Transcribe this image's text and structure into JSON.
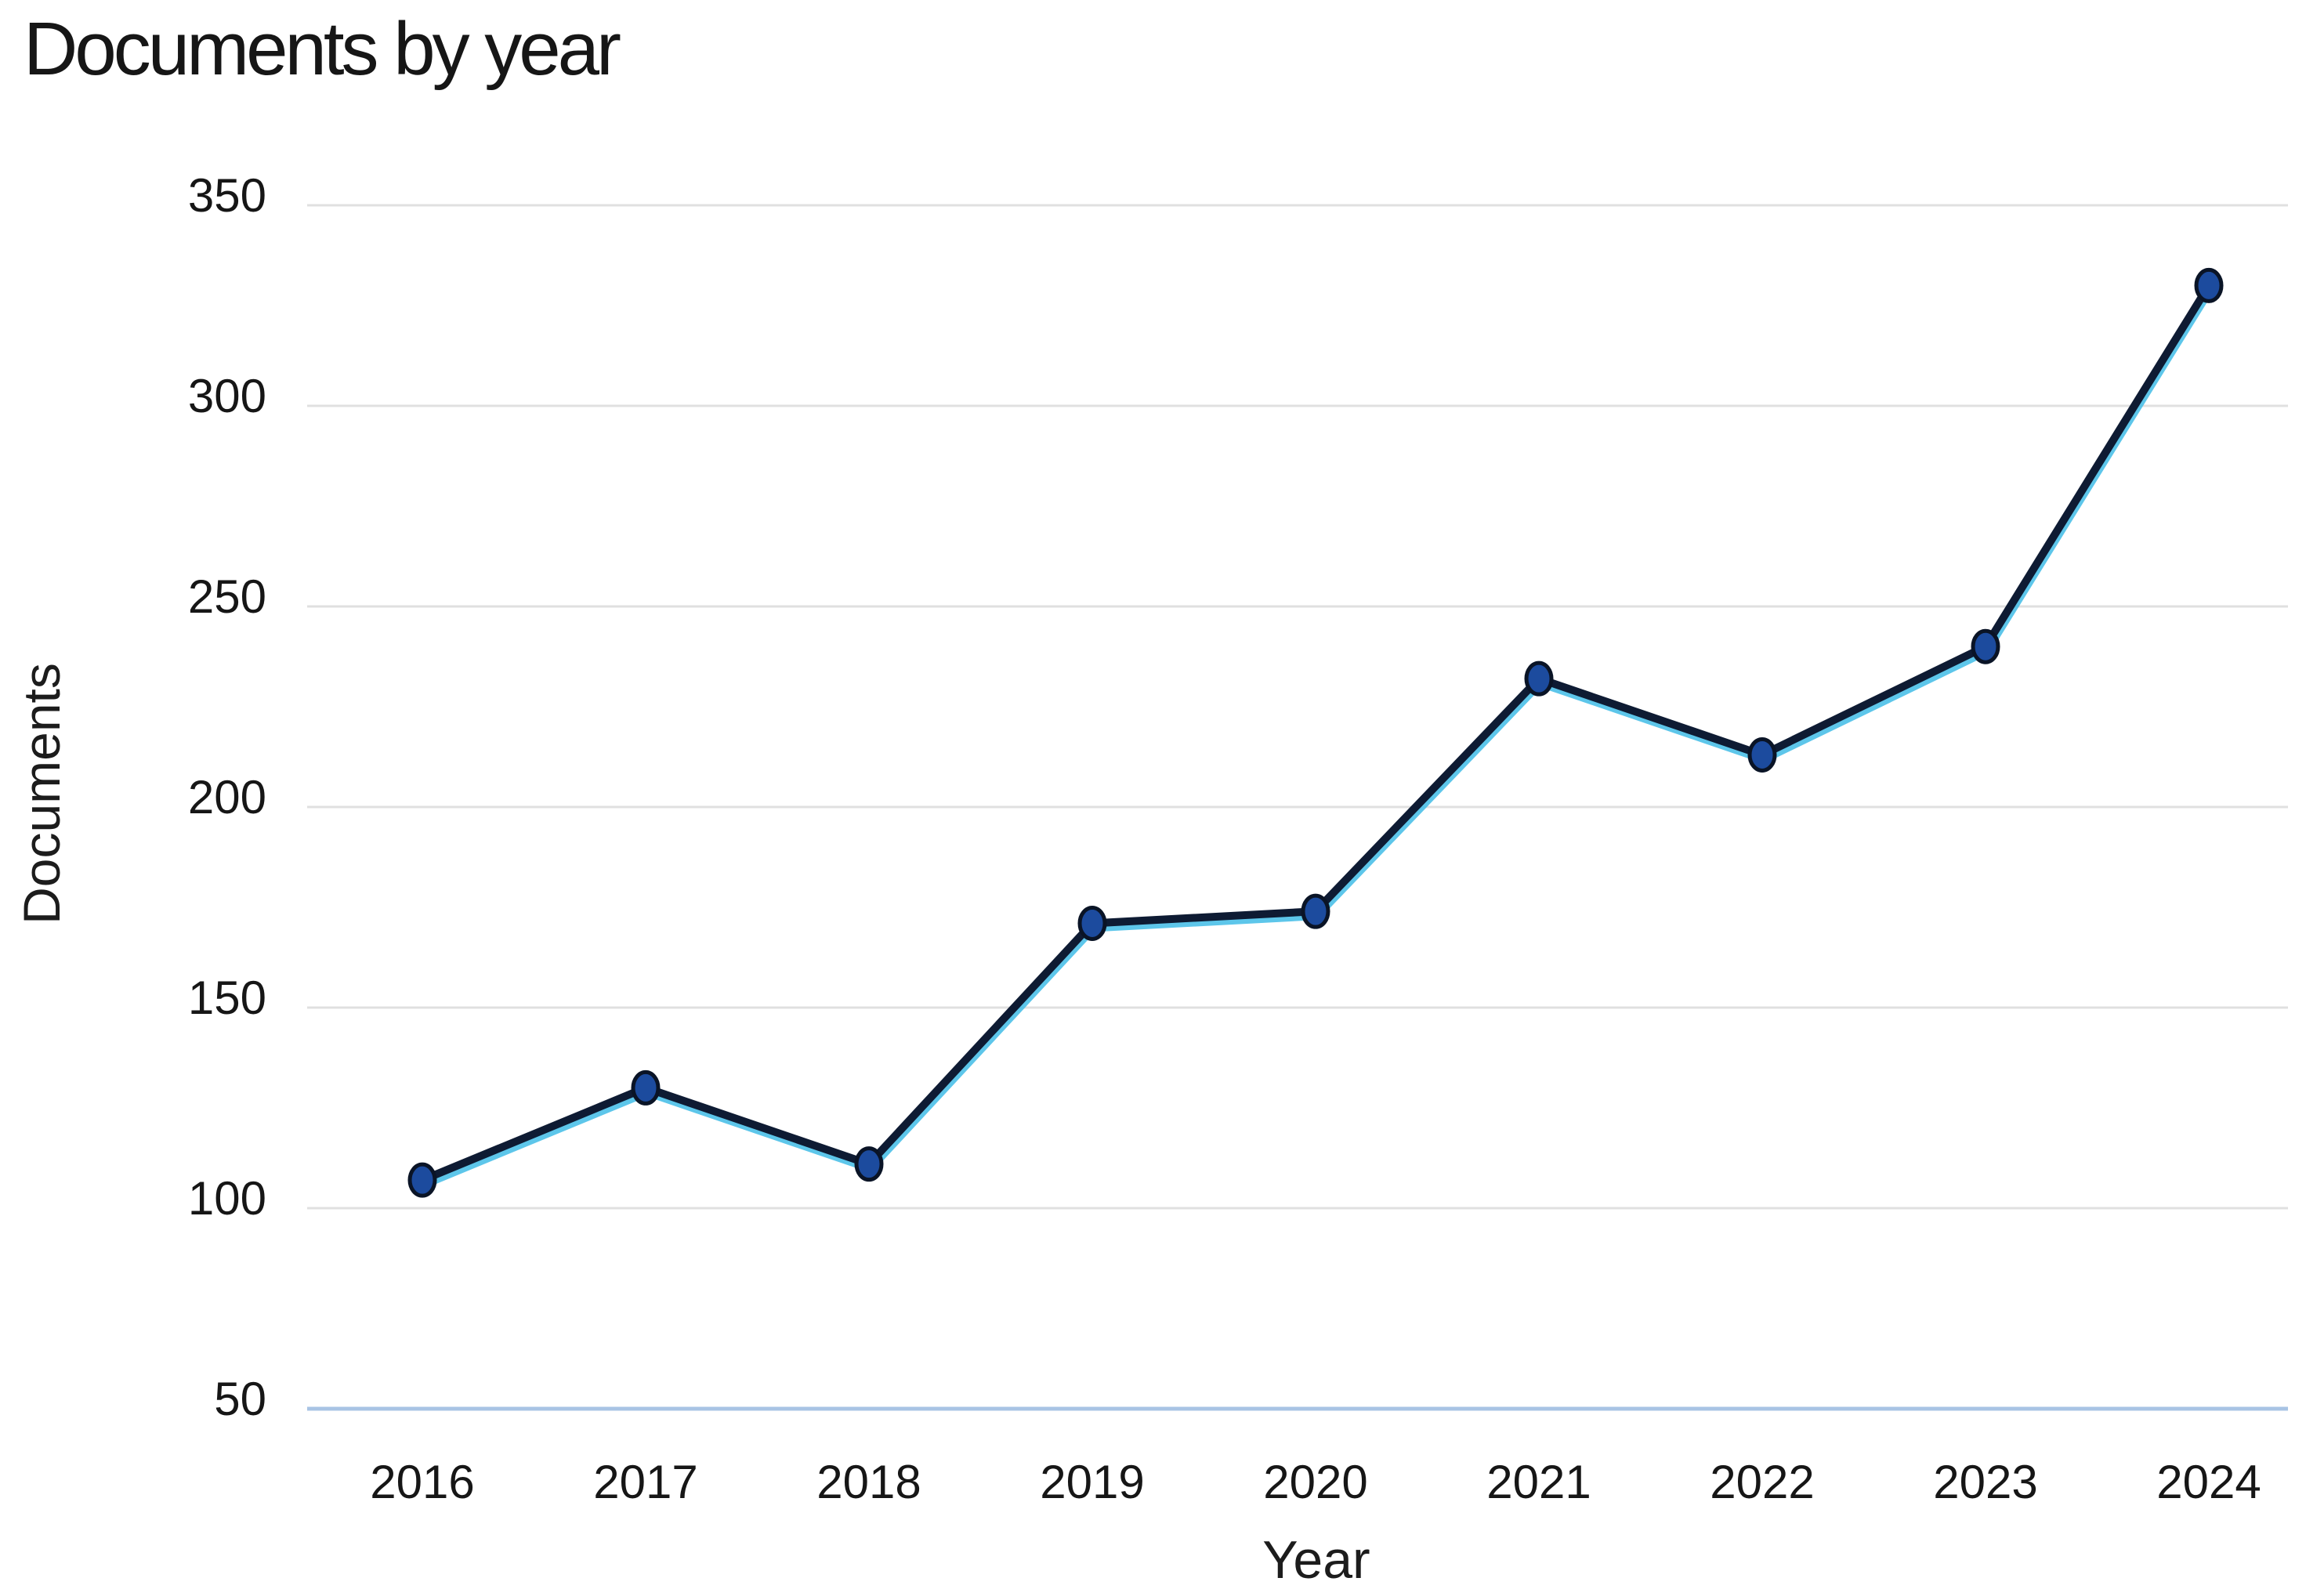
{
  "title": "Documents by year",
  "chart_data": {
    "type": "line",
    "title": "Documents by year",
    "xlabel": "Year",
    "ylabel": "Documents",
    "categories": [
      "2016",
      "2017",
      "2018",
      "2019",
      "2020",
      "2021",
      "2022",
      "2023",
      "2024"
    ],
    "values": [
      107,
      130,
      111,
      171,
      174,
      232,
      213,
      240,
      330
    ],
    "yticks": [
      350,
      300,
      250,
      200,
      150,
      100,
      50
    ],
    "ylim": [
      50,
      350
    ],
    "grid": "horizontal",
    "legend": "none",
    "colors": {
      "line": "#0e1b33",
      "line_halo": "#41bce6",
      "marker_fill": "#1c4b9e",
      "marker_stroke": "#0a1426",
      "gridline": "#e0e0e0",
      "baseline_gridline": "#a8c4e4",
      "text": "#161616",
      "background": "#ffffff"
    }
  }
}
